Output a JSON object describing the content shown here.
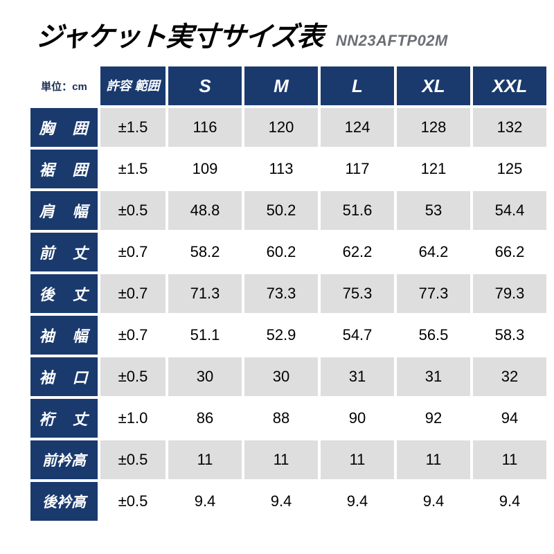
{
  "title": "ジャケット実寸サイズ表",
  "product_code": "NN23AFTP02M",
  "unit_label": "単位：cm",
  "colors": {
    "header_bg": "#1a3a6e",
    "header_fg": "#ffffff",
    "cell_bg": "#ffffff",
    "cell_alt_bg": "#dedede",
    "text": "#000000"
  },
  "columns": {
    "tolerance_header": "許容\n範囲",
    "sizes": [
      "S",
      "M",
      "L",
      "XL",
      "XXL"
    ]
  },
  "rows": [
    {
      "label": "胸　囲",
      "tight": false,
      "tolerance": "±1.5",
      "values": [
        116,
        120,
        124,
        128,
        132
      ]
    },
    {
      "label": "裾　囲",
      "tight": false,
      "tolerance": "±1.5",
      "values": [
        109,
        113,
        117,
        121,
        125
      ]
    },
    {
      "label": "肩　幅",
      "tight": false,
      "tolerance": "±0.5",
      "values": [
        48.8,
        50.2,
        51.6,
        53,
        54.4
      ]
    },
    {
      "label": "前　丈",
      "tight": false,
      "tolerance": "±0.7",
      "values": [
        58.2,
        60.2,
        62.2,
        64.2,
        66.2
      ]
    },
    {
      "label": "後　丈",
      "tight": false,
      "tolerance": "±0.7",
      "values": [
        71.3,
        73.3,
        75.3,
        77.3,
        79.3
      ]
    },
    {
      "label": "袖　幅",
      "tight": false,
      "tolerance": "±0.7",
      "values": [
        51.1,
        52.9,
        54.7,
        56.5,
        58.3
      ]
    },
    {
      "label": "袖　口",
      "tight": false,
      "tolerance": "±0.5",
      "values": [
        30,
        30,
        31,
        31,
        32
      ]
    },
    {
      "label": "裄　丈",
      "tight": false,
      "tolerance": "±1.0",
      "values": [
        86,
        88,
        90,
        92,
        94
      ]
    },
    {
      "label": "前衿高",
      "tight": true,
      "tolerance": "±0.5",
      "values": [
        11,
        11,
        11,
        11,
        11
      ]
    },
    {
      "label": "後衿高",
      "tight": true,
      "tolerance": "±0.5",
      "values": [
        9.4,
        9.4,
        9.4,
        9.4,
        9.4
      ]
    }
  ]
}
